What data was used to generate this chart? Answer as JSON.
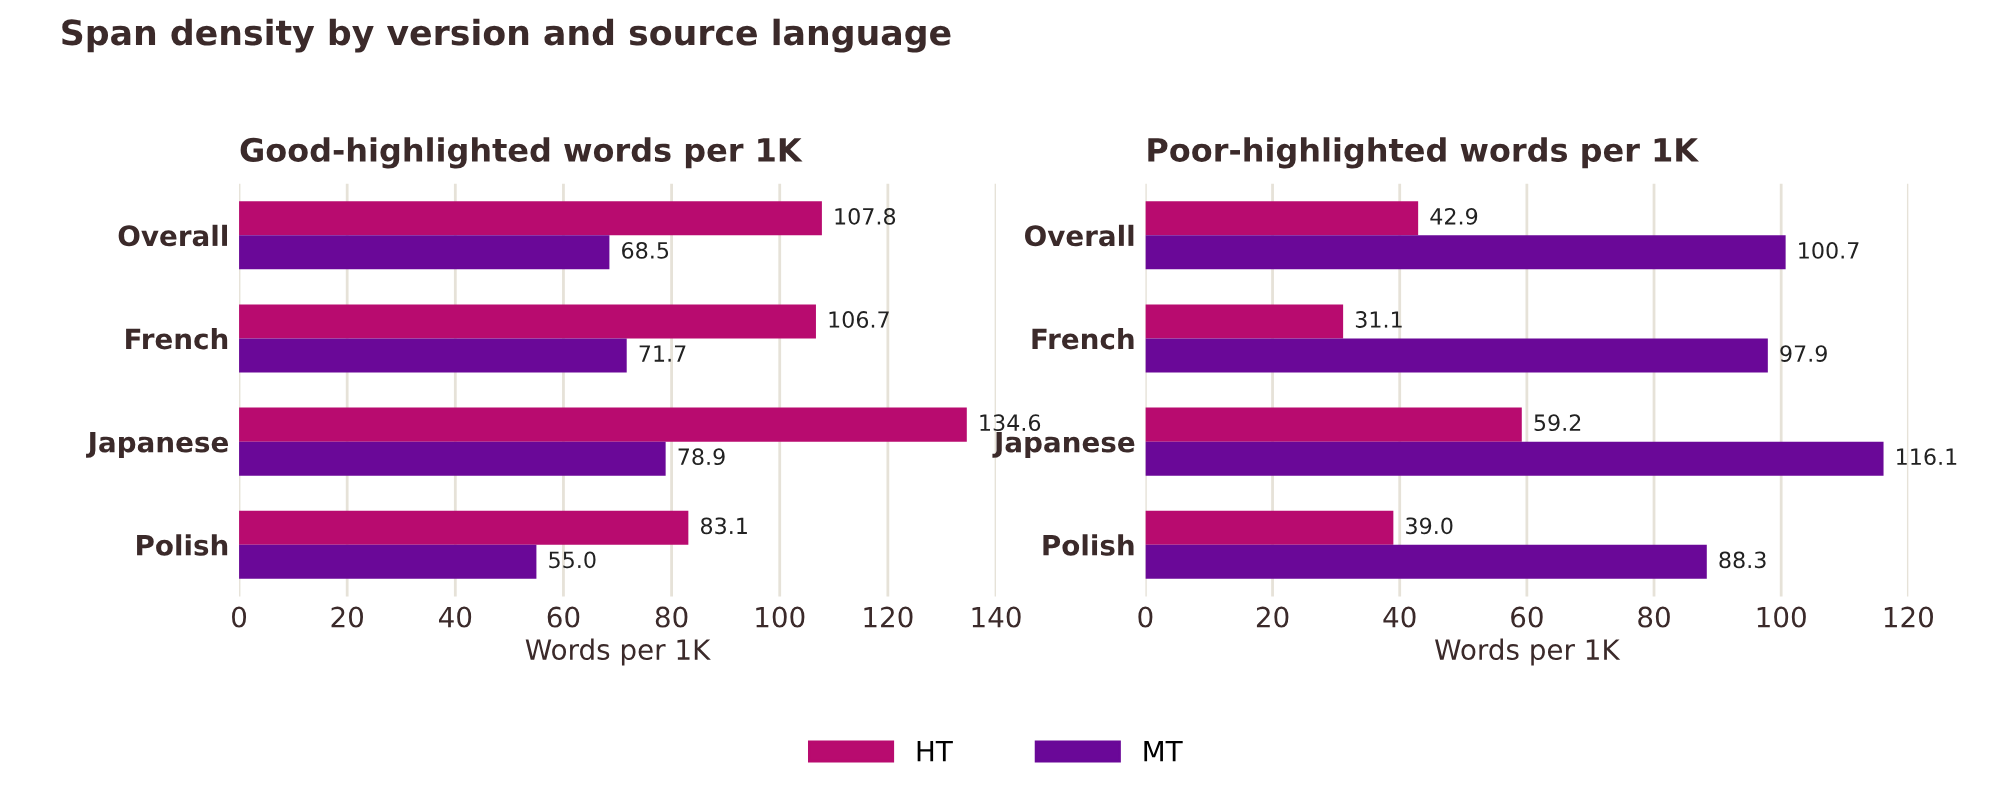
{
  "chart_data": [
    {
      "type": "other",
      "title": "Span density by version and source language"
    },
    {
      "type": "bar",
      "orientation": "horizontal",
      "title": "Good-highlighted words per 1K",
      "xlabel": "Words per 1K",
      "categories": [
        "Overall",
        "French",
        "Japanese",
        "Polish"
      ],
      "series": [
        {
          "color": "#b80b6f",
          "values": [
            107.8,
            106.7,
            134.6,
            83.1
          ],
          "value_labels": [
            "107.8",
            "106.7",
            "134.6",
            "83.1"
          ]
        },
        {
          "color": "#6a0898",
          "values": [
            68.5,
            71.7,
            78.9,
            55.0
          ],
          "value_labels": [
            "68.5",
            "71.7",
            "78.9",
            "55.0"
          ]
        }
      ],
      "xlim": [
        0,
        140
      ],
      "xticks": [
        0,
        20,
        40,
        60,
        80,
        100,
        120,
        140
      ],
      "grid": "x"
    },
    {
      "type": "bar",
      "orientation": "horizontal",
      "title": "Poor-highlighted words per 1K",
      "xlabel": "Words per 1K",
      "categories": [
        "Overall",
        "French",
        "Japanese",
        "Polish"
      ],
      "series": [
        {
          "name": "HT",
          "color": "#b80b6f",
          "values": [
            42.9,
            31.1,
            59.2,
            39.0
          ],
          "value_labels": [
            "42.9",
            "31.1",
            "59.2",
            "39.0"
          ]
        },
        {
          "name": "MT",
          "color": "#6a0898",
          "values": [
            100.7,
            97.9,
            116.1,
            88.3
          ],
          "value_labels": [
            "100.7",
            "97.9",
            "116.1",
            "88.3"
          ]
        }
      ],
      "xlim": [
        0,
        120
      ],
      "xticks": [
        0,
        20,
        40,
        60,
        80,
        100,
        120
      ],
      "grid": "x",
      "legend": "bottom"
    }
  ]
}
